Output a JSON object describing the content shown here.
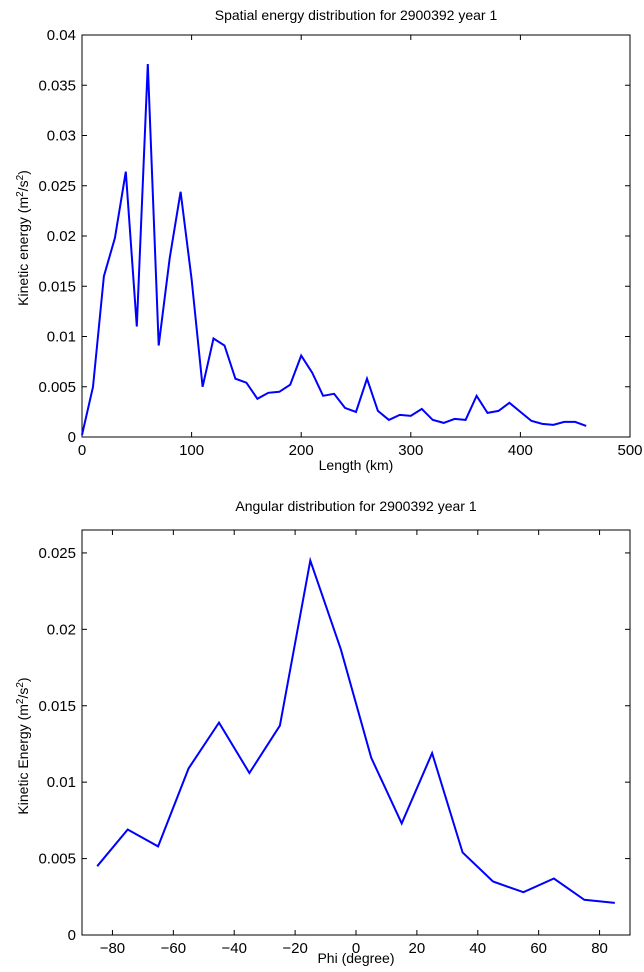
{
  "chart_data": [
    {
      "type": "line",
      "title": "Spatial energy distribution for 2900392 year 1",
      "xlabel": "Length (km)",
      "ylabel": "Kinetic energy (m2/s2)",
      "ylabel_parts": {
        "pre": "Kinetic energy (m",
        "sup1": "2",
        "mid": "/s",
        "sup2": "2",
        "post": ")"
      },
      "xlim": [
        0,
        500
      ],
      "ylim": [
        0,
        0.04
      ],
      "xticks": [
        0,
        100,
        200,
        300,
        400,
        500
      ],
      "xticklabels": [
        "0",
        "100",
        "200",
        "300",
        "400",
        "500"
      ],
      "yticks": [
        0,
        0.005,
        0.01,
        0.015,
        0.02,
        0.025,
        0.03,
        0.035,
        0.04
      ],
      "yticklabels": [
        "0",
        "0.005",
        "0.01",
        "0.015",
        "0.02",
        "0.025",
        "0.03",
        "0.035",
        "0.04"
      ],
      "grid": false,
      "line_color": "#0000ff",
      "series": [
        {
          "x": [
            0,
            10,
            20,
            30,
            40,
            50,
            60,
            70,
            80,
            90,
            100,
            110,
            120,
            130,
            140,
            150,
            160,
            170,
            180,
            190,
            200,
            210,
            220,
            230,
            240,
            250,
            260,
            270,
            280,
            290,
            300,
            310,
            320,
            330,
            340,
            350,
            360,
            370,
            380,
            390,
            400,
            410,
            420,
            430,
            440,
            450,
            460
          ],
          "y": [
            0.0002,
            0.005,
            0.016,
            0.0198,
            0.0264,
            0.011,
            0.0371,
            0.0091,
            0.0178,
            0.0244,
            0.0157,
            0.005,
            0.0098,
            0.0091,
            0.0058,
            0.0054,
            0.0038,
            0.0044,
            0.0045,
            0.0052,
            0.0081,
            0.0064,
            0.0041,
            0.0043,
            0.0029,
            0.0025,
            0.0058,
            0.0026,
            0.0017,
            0.0022,
            0.0021,
            0.0028,
            0.0017,
            0.0014,
            0.0018,
            0.0017,
            0.0041,
            0.0024,
            0.0026,
            0.0034,
            0.0025,
            0.0016,
            0.0013,
            0.0012,
            0.0015,
            0.0015,
            0.0011
          ]
        }
      ]
    },
    {
      "type": "line",
      "title": "Angular distribution for 2900392 year 1",
      "xlabel": "Phi (degree)",
      "ylabel": "Kinetic Energy (m2/s2)",
      "ylabel_parts": {
        "pre": "Kinetic Energy (m",
        "sup1": "2",
        "mid": "/s",
        "sup2": "2",
        "post": ")"
      },
      "xlim": [
        -90,
        90
      ],
      "ylim": [
        0,
        0.0265
      ],
      "xticks": [
        -80,
        -60,
        -40,
        -20,
        0,
        20,
        40,
        60,
        80
      ],
      "xticklabels": [
        "−80",
        "−60",
        "−40",
        "−20",
        "0",
        "20",
        "40",
        "60",
        "80"
      ],
      "yticks": [
        0,
        0.005,
        0.01,
        0.015,
        0.02,
        0.025
      ],
      "yticklabels": [
        "0",
        "0.005",
        "0.01",
        "0.015",
        "0.02",
        "0.025"
      ],
      "grid": false,
      "line_color": "#0000ff",
      "series": [
        {
          "x": [
            -85,
            -75,
            -65,
            -55,
            -45,
            -35,
            -25,
            -15,
            -5,
            5,
            15,
            25,
            35,
            45,
            55,
            65,
            75,
            85
          ],
          "y": [
            0.0045,
            0.0069,
            0.0058,
            0.0109,
            0.0139,
            0.0106,
            0.0137,
            0.0245,
            0.0187,
            0.0116,
            0.0073,
            0.0119,
            0.0054,
            0.0035,
            0.0028,
            0.0037,
            0.0023,
            0.0021
          ]
        }
      ]
    }
  ]
}
